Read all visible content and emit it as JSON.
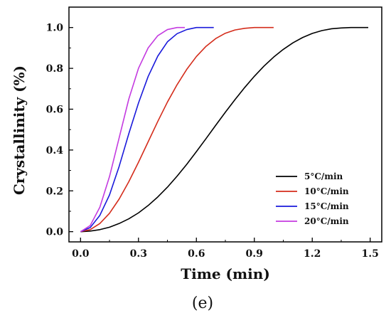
{
  "panel_label": "(e)",
  "chart_data": {
    "type": "line",
    "xlabel": "Time (min)",
    "ylabel": "Crystallinity (%)",
    "xlim": [
      -0.06,
      1.56
    ],
    "ylim": [
      -0.05,
      1.1
    ],
    "xticks": [
      0.0,
      0.3,
      0.6,
      0.9,
      1.2,
      1.5
    ],
    "xtick_labels": [
      "0.0",
      "0.3",
      "0.6",
      "0.9",
      "1.2",
      "1.5"
    ],
    "yticks": [
      0.0,
      0.2,
      0.4,
      0.6,
      0.8,
      1.0
    ],
    "ytick_labels": [
      "0.0",
      "0.2",
      "0.4",
      "0.6",
      "0.8",
      "1.0"
    ],
    "grid": false,
    "legend_position": "bottom-right",
    "series": [
      {
        "name": "5°C/min",
        "color": "#000000",
        "x": [
          0.0,
          0.05,
          0.1,
          0.15,
          0.2,
          0.25,
          0.3,
          0.35,
          0.4,
          0.45,
          0.5,
          0.55,
          0.6,
          0.65,
          0.7,
          0.75,
          0.8,
          0.85,
          0.9,
          0.95,
          1.0,
          1.05,
          1.1,
          1.15,
          1.2,
          1.25,
          1.3,
          1.35,
          1.4,
          1.45,
          1.49
        ],
        "y": [
          0.0,
          0.003,
          0.01,
          0.022,
          0.04,
          0.063,
          0.092,
          0.128,
          0.17,
          0.218,
          0.272,
          0.33,
          0.392,
          0.456,
          0.521,
          0.585,
          0.647,
          0.706,
          0.761,
          0.811,
          0.855,
          0.893,
          0.925,
          0.951,
          0.971,
          0.985,
          0.994,
          0.998,
          1.0,
          1.0,
          1.0
        ]
      },
      {
        "name": "10°C/min",
        "color": "#d42c1b",
        "x": [
          0.0,
          0.05,
          0.1,
          0.15,
          0.2,
          0.25,
          0.3,
          0.35,
          0.4,
          0.45,
          0.5,
          0.55,
          0.6,
          0.65,
          0.7,
          0.75,
          0.8,
          0.85,
          0.9,
          0.95,
          1.0
        ],
        "y": [
          0.0,
          0.01,
          0.04,
          0.09,
          0.16,
          0.245,
          0.34,
          0.44,
          0.54,
          0.635,
          0.72,
          0.795,
          0.858,
          0.908,
          0.946,
          0.972,
          0.988,
          0.996,
          1.0,
          1.0,
          1.0
        ]
      },
      {
        "name": "15°C/min",
        "color": "#1a1adb",
        "x": [
          0.0,
          0.05,
          0.1,
          0.15,
          0.2,
          0.25,
          0.3,
          0.35,
          0.4,
          0.45,
          0.5,
          0.55,
          0.6,
          0.65,
          0.69
        ],
        "y": [
          0.0,
          0.02,
          0.08,
          0.18,
          0.32,
          0.48,
          0.63,
          0.76,
          0.86,
          0.93,
          0.97,
          0.99,
          1.0,
          1.0,
          1.0
        ]
      },
      {
        "name": "20°C/min",
        "color": "#c43be0",
        "x": [
          0.0,
          0.05,
          0.1,
          0.15,
          0.2,
          0.25,
          0.3,
          0.35,
          0.4,
          0.45,
          0.5,
          0.54
        ],
        "y": [
          0.0,
          0.03,
          0.12,
          0.27,
          0.46,
          0.65,
          0.8,
          0.9,
          0.96,
          0.99,
          1.0,
          1.0
        ]
      }
    ]
  }
}
